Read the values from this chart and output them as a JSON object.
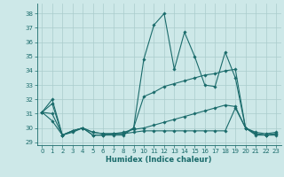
{
  "xlabel": "Humidex (Indice chaleur)",
  "background_color": "#cde8e8",
  "grid_color": "#aacccc",
  "line_color": "#1a6b6b",
  "xlim": [
    -0.5,
    23.5
  ],
  "ylim": [
    28.8,
    38.7
  ],
  "yticks": [
    29,
    30,
    31,
    32,
    33,
    34,
    35,
    36,
    37,
    38
  ],
  "xticks": [
    0,
    1,
    2,
    3,
    4,
    5,
    6,
    7,
    8,
    9,
    10,
    11,
    12,
    13,
    14,
    15,
    16,
    17,
    18,
    19,
    20,
    21,
    22,
    23
  ],
  "series": [
    [
      31.1,
      32.0,
      29.5,
      29.7,
      30.0,
      29.5,
      29.5,
      29.5,
      29.5,
      30.0,
      34.8,
      37.2,
      38.0,
      34.1,
      36.7,
      35.0,
      33.0,
      32.9,
      35.3,
      33.5,
      30.0,
      29.6,
      29.5,
      29.6
    ],
    [
      31.1,
      31.7,
      29.5,
      29.8,
      30.0,
      29.7,
      29.6,
      29.6,
      29.6,
      30.0,
      32.2,
      32.5,
      32.9,
      33.1,
      33.3,
      33.5,
      33.7,
      33.8,
      34.0,
      34.1,
      30.0,
      29.7,
      29.6,
      29.7
    ],
    [
      31.1,
      30.5,
      29.5,
      29.8,
      30.0,
      29.5,
      29.5,
      29.6,
      29.6,
      29.7,
      29.8,
      29.8,
      29.8,
      29.8,
      29.8,
      29.8,
      29.8,
      29.8,
      29.8,
      31.4,
      30.0,
      29.5,
      29.5,
      29.5
    ],
    [
      31.1,
      31.0,
      29.5,
      29.8,
      30.0,
      29.7,
      29.6,
      29.6,
      29.7,
      29.9,
      30.0,
      30.2,
      30.4,
      30.6,
      30.8,
      31.0,
      31.2,
      31.4,
      31.6,
      31.5,
      30.0,
      29.6,
      29.5,
      29.6
    ]
  ]
}
